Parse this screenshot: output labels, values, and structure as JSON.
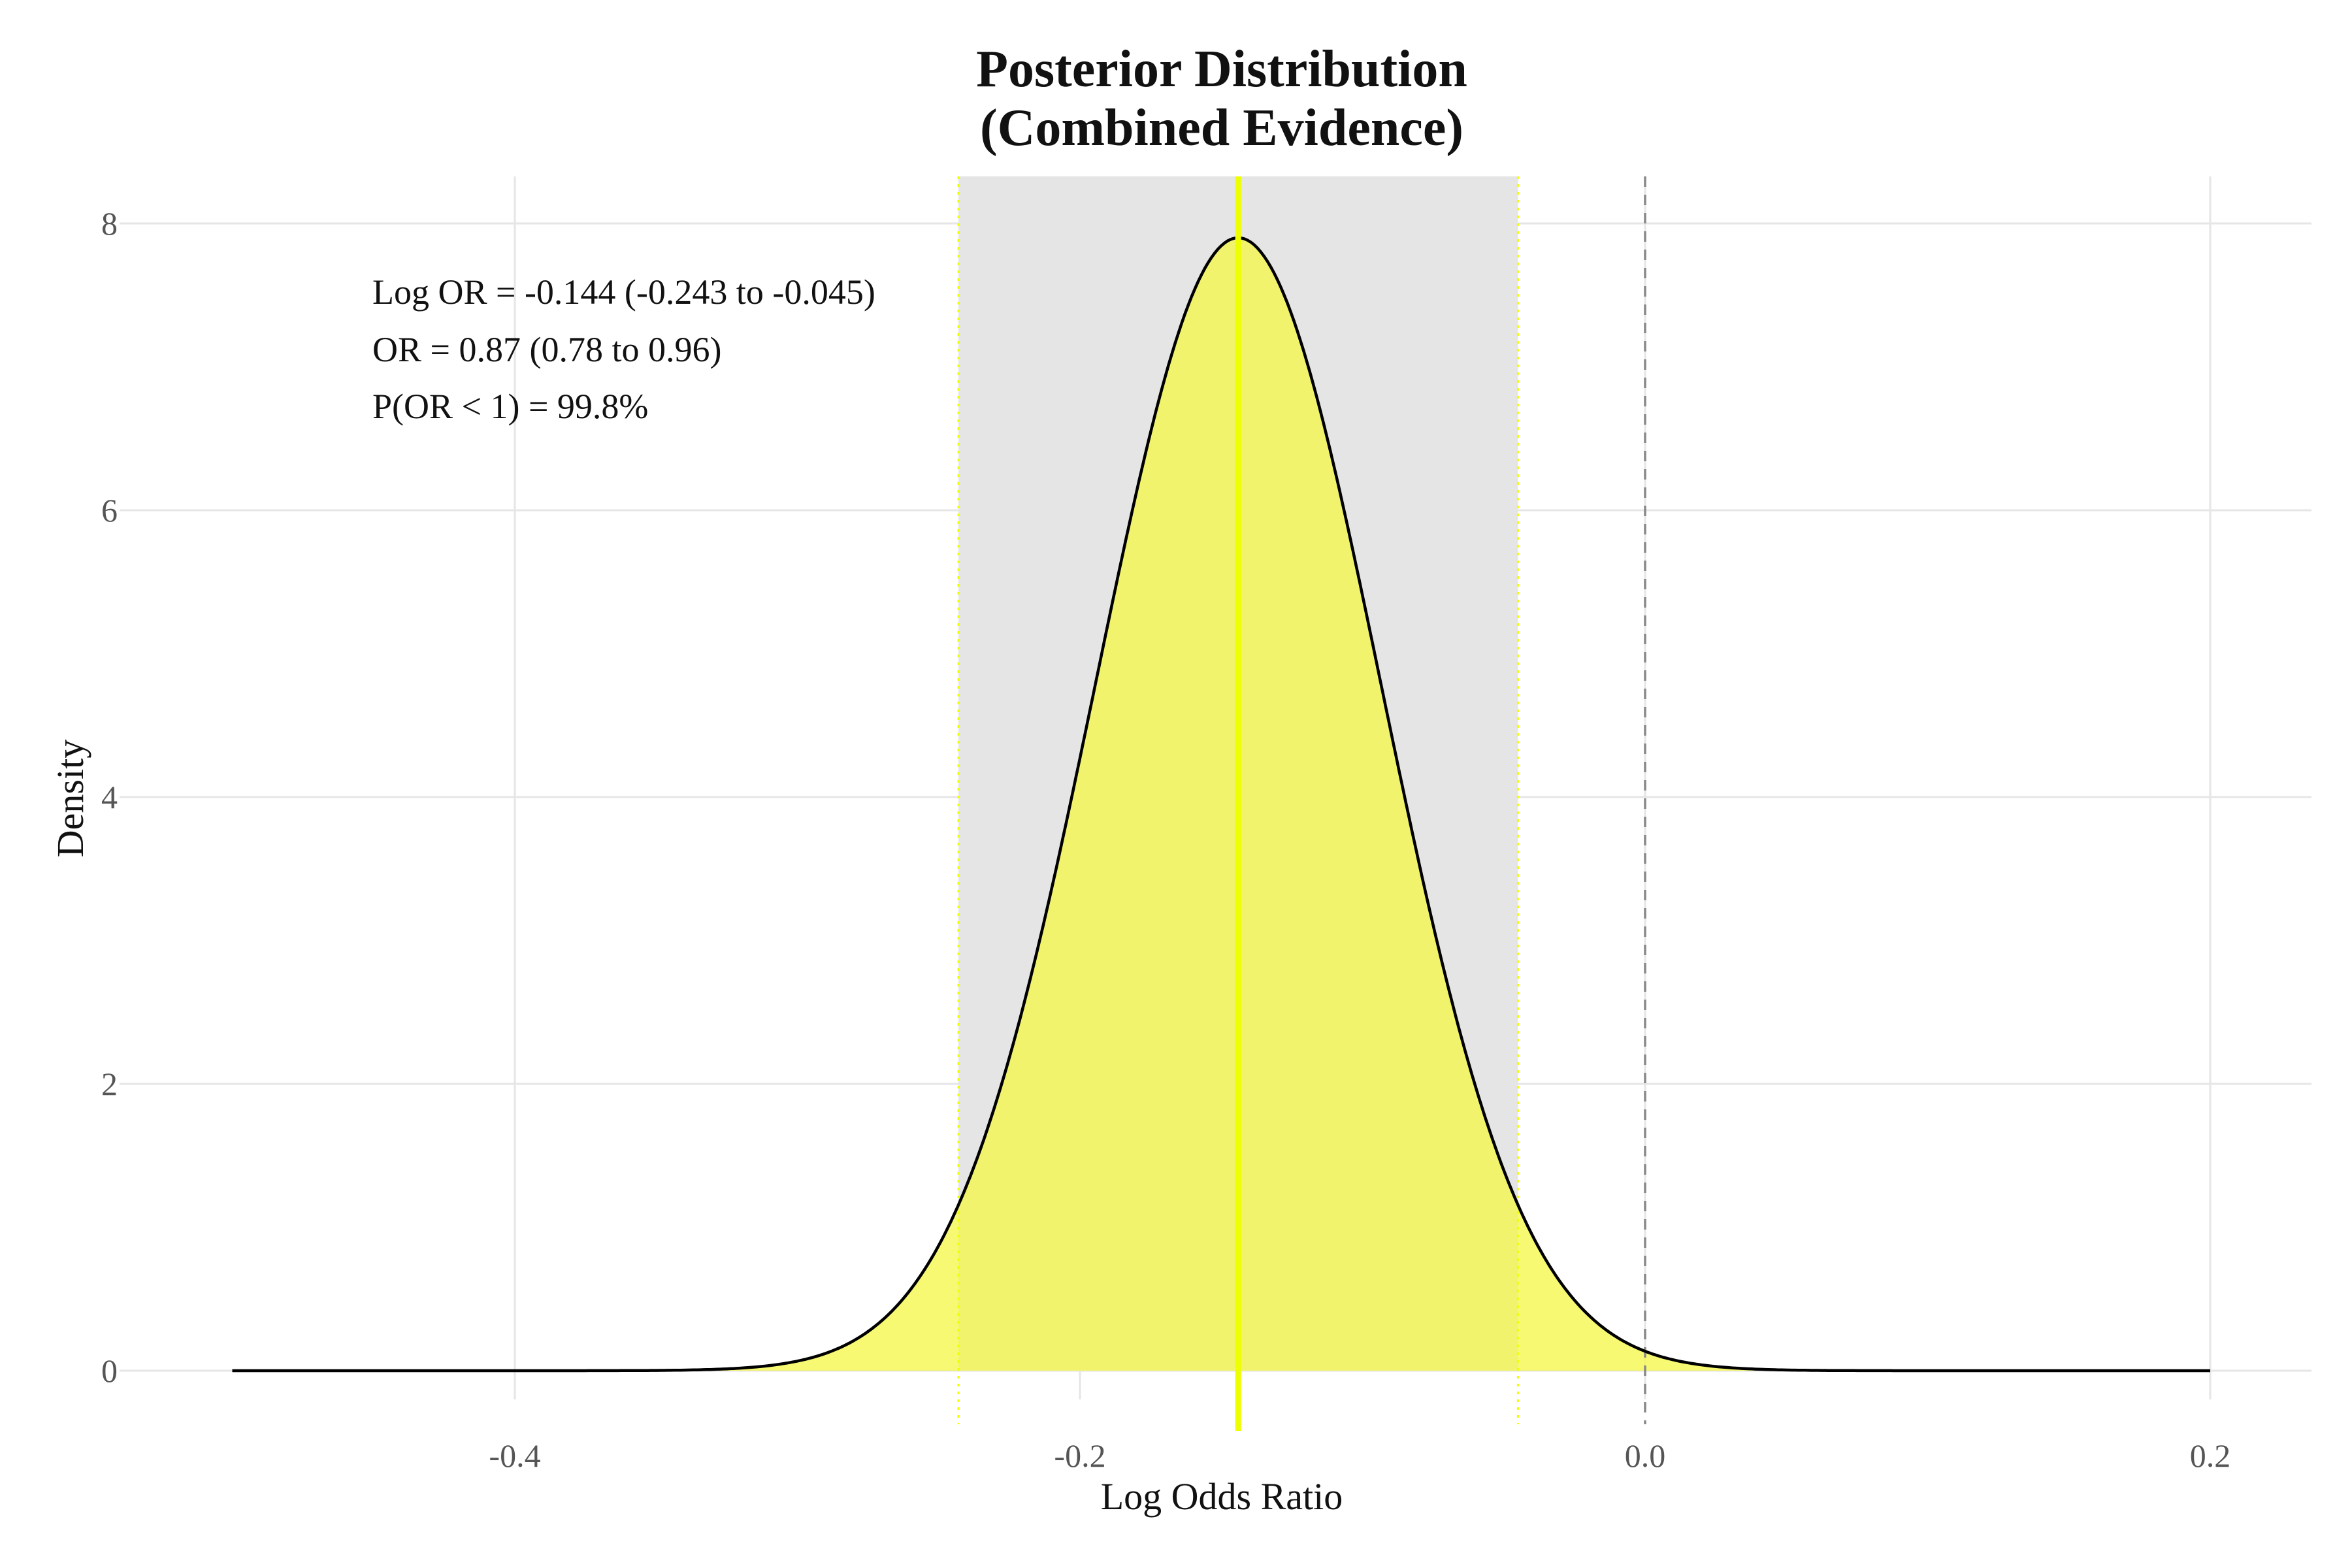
{
  "chart_data": {
    "type": "area",
    "title": [
      "Posterior Distribution",
      "(Combined Evidence)"
    ],
    "xlabel": "Log Odds Ratio",
    "ylabel": "Density",
    "xlim": [
      -0.5,
      0.2
    ],
    "ylim": [
      0,
      8
    ],
    "x_ticks": [
      -0.4,
      -0.2,
      0.0,
      0.2
    ],
    "x_tick_labels": [
      "-0.4",
      "-0.2",
      "0.0",
      "0.2"
    ],
    "y_ticks": [
      0,
      2,
      4,
      6,
      8
    ],
    "y_tick_labels": [
      "0",
      "2",
      "4",
      "6",
      "8"
    ],
    "grid": true,
    "distribution": {
      "kind": "normal",
      "mean": -0.144,
      "sd": 0.0505,
      "x_start": -0.5,
      "x_end": 0.2,
      "peak_density": 7.9
    },
    "credible_interval": {
      "lower": -0.243,
      "upper": -0.045
    },
    "mean_line": -0.144,
    "reference_line": 0.0,
    "annotations": [
      "Log OR = -0.144 (-0.243 to -0.045)",
      "OR = 0.87 (0.78 to 0.96)",
      "P(OR < 1) = 99.8%"
    ],
    "colors": {
      "fill": "#f5f74a",
      "ci_band": "#e5e5e5",
      "mean_line": "#eeff00",
      "curve": "#000000",
      "reference_line": "#888888",
      "grid": "#e6e6e6"
    }
  }
}
